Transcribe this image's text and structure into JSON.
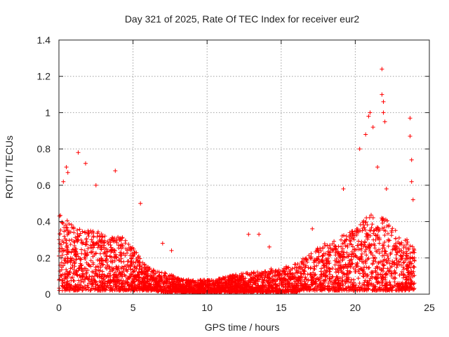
{
  "chart_data": {
    "type": "scatter",
    "title": "Day 321 of 2025, Rate Of TEC Index for receiver eur2",
    "xlabel": "GPS time / hours",
    "ylabel": "ROTI / TECUs",
    "xlim": [
      0,
      25
    ],
    "ylim": [
      0,
      1.4
    ],
    "xticks": [
      0,
      5,
      10,
      15,
      20,
      25
    ],
    "xtick_labels": [
      "0",
      "5",
      "10",
      "15",
      "20",
      "25"
    ],
    "yticks": [
      0,
      0.2,
      0.4,
      0.6,
      0.8,
      1.0,
      1.2,
      1.4
    ],
    "ytick_labels": [
      "0",
      "0.2",
      "0.4",
      "0.6",
      "0.8",
      "1",
      "1.2",
      "1.4"
    ],
    "grid": true,
    "marker": "+",
    "marker_color": "#ff0000",
    "envelope": {
      "x": [
        0,
        0.5,
        1,
        1.5,
        2,
        2.5,
        3,
        3.5,
        4,
        4.5,
        5,
        5.5,
        6,
        6.5,
        7,
        7.5,
        8,
        8.5,
        9,
        9.5,
        10,
        10.5,
        11,
        11.5,
        12,
        12.5,
        13,
        13.5,
        14,
        14.5,
        15,
        15.5,
        16,
        16.5,
        17,
        17.5,
        18,
        18.5,
        19,
        19.5,
        20,
        20.5,
        21,
        21.5,
        22,
        22.5,
        23,
        23.5,
        24
      ],
      "typical_max": [
        0.45,
        0.42,
        0.38,
        0.36,
        0.36,
        0.35,
        0.33,
        0.32,
        0.33,
        0.3,
        0.26,
        0.2,
        0.15,
        0.13,
        0.12,
        0.11,
        0.09,
        0.08,
        0.08,
        0.08,
        0.08,
        0.08,
        0.09,
        0.1,
        0.11,
        0.12,
        0.12,
        0.13,
        0.14,
        0.14,
        0.15,
        0.16,
        0.17,
        0.2,
        0.24,
        0.26,
        0.28,
        0.3,
        0.32,
        0.34,
        0.36,
        0.4,
        0.45,
        0.45,
        0.42,
        0.38,
        0.32,
        0.3,
        0.25
      ],
      "typical_min": [
        0.02,
        0.02,
        0.02,
        0.02,
        0.02,
        0.02,
        0.02,
        0.02,
        0.02,
        0.02,
        0.02,
        0.02,
        0.02,
        0.02,
        0.01,
        0.01,
        0.01,
        0.01,
        0.01,
        0.01,
        0.01,
        0.01,
        0.01,
        0.01,
        0.01,
        0.01,
        0.01,
        0.01,
        0.01,
        0.01,
        0.01,
        0.01,
        0.01,
        0.02,
        0.02,
        0.02,
        0.02,
        0.02,
        0.02,
        0.02,
        0.02,
        0.02,
        0.02,
        0.02,
        0.02,
        0.02,
        0.02,
        0.02,
        0.02
      ]
    },
    "outliers": {
      "x": [
        0.3,
        0.5,
        0.6,
        1.3,
        1.8,
        2.5,
        3.8,
        5.5,
        7.0,
        7.6,
        12.8,
        13.5,
        14.2,
        17.1,
        19.2,
        20.3,
        20.7,
        20.9,
        21.0,
        21.2,
        21.5,
        21.8,
        21.8,
        21.9,
        21.9,
        22.0,
        22.1,
        23.7,
        23.7,
        23.8,
        23.8,
        23.9
      ],
      "y": [
        0.62,
        0.7,
        0.67,
        0.78,
        0.72,
        0.6,
        0.68,
        0.5,
        0.28,
        0.24,
        0.33,
        0.33,
        0.26,
        0.36,
        0.58,
        0.8,
        0.88,
        0.98,
        1.0,
        0.92,
        0.7,
        1.24,
        1.1,
        1.06,
        1.0,
        0.95,
        0.58,
        0.97,
        0.87,
        0.74,
        0.62,
        0.52
      ]
    }
  }
}
